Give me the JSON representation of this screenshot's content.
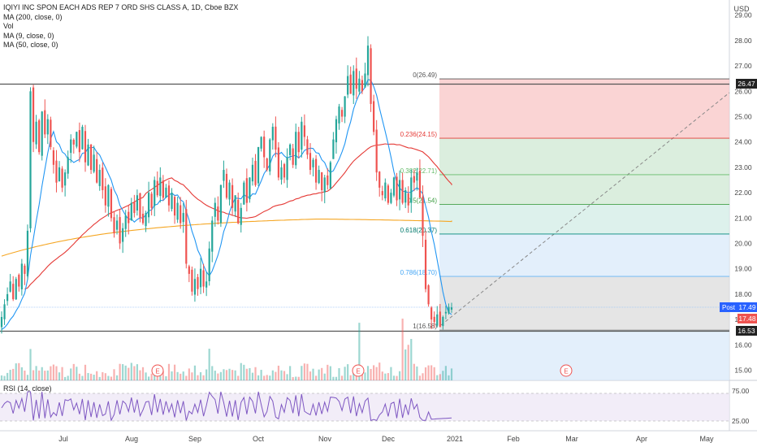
{
  "chart": {
    "title": "IQIYI INC SPON EACH ADS REP 7 ORD SHS CLASS A, 1D, Cboe BZX",
    "indicators": [
      "MA (200, close, 0)",
      "Vol",
      "MA (9, close, 0)",
      "MA (50, close, 0)"
    ],
    "currency": "USD",
    "rsi_label": "RSI (14, close)",
    "x_labels": [
      "Jul",
      "Aug",
      "Sep",
      "Oct",
      "Nov",
      "Dec",
      "2021",
      "Feb",
      "Mar",
      "Apr",
      "May"
    ],
    "price_labels": [
      "29.00",
      "28.00",
      "27.00",
      "26.00",
      "25.00",
      "24.00",
      "23.00",
      "22.00",
      "21.00",
      "20.00",
      "19.00",
      "18.00",
      "17.00",
      "16.00",
      "15.00"
    ],
    "rsi_labels": [
      "75.00",
      "25.00"
    ],
    "fib_labels": [
      "0(26.49)",
      "0.236(24.15)",
      "0.382(22.71)",
      "0.5(21.54)",
      "0.618(20.37)",
      "0.786(18.70)",
      "1(16.58)"
    ],
    "earnings_marker": "E",
    "tags": {
      "resistance": "26.47",
      "post_label": "Post",
      "post_price": "17.49",
      "last_price": "17.48",
      "support": "16.53"
    },
    "colors": {
      "up": "#26a69a",
      "down": "#ef5350",
      "ma9": "#2196f3",
      "ma50": "#e53935",
      "ma200": "#f5a623",
      "rsi": "#7e57c2",
      "accent": "#2962ff"
    }
  },
  "chart_data": {
    "type": "candlestick",
    "symbol": "IQ",
    "interval": "1D",
    "ylim": [
      14.6,
      29.6
    ],
    "resistance_level": 26.47,
    "support_level": 16.53,
    "fib_levels": [
      {
        "ratio": 0,
        "price": 26.49
      },
      {
        "ratio": 0.236,
        "price": 24.15
      },
      {
        "ratio": 0.382,
        "price": 22.71
      },
      {
        "ratio": 0.5,
        "price": 21.54
      },
      {
        "ratio": 0.618,
        "price": 20.37
      },
      {
        "ratio": 0.786,
        "price": 18.7
      },
      {
        "ratio": 1,
        "price": 16.58
      }
    ],
    "closes": [
      17.1,
      17.6,
      18.0,
      18.5,
      17.8,
      18.6,
      18.3,
      19.2,
      18.8,
      20.5,
      26.0,
      24.0,
      24.8,
      23.6,
      25.2,
      24.3,
      24.9,
      23.8,
      23.1,
      22.4,
      23.0,
      22.2,
      22.8,
      23.4,
      24.1,
      23.9,
      24.4,
      23.6,
      24.6,
      23.2,
      23.9,
      22.9,
      23.5,
      22.4,
      22.9,
      22.1,
      21.5,
      22.3,
      21.0,
      20.4,
      20.9,
      20.0,
      20.6,
      21.1,
      20.8,
      21.6,
      21.2,
      21.9,
      21.0,
      20.8,
      21.2,
      22.0,
      21.4,
      22.5,
      21.9,
      22.6,
      21.8,
      22.2,
      21.5,
      22.0,
      21.1,
      21.6,
      20.8,
      21.2,
      19.2,
      18.8,
      18.1,
      18.6,
      18.2,
      19.0,
      18.3,
      18.5,
      19.8,
      20.9,
      21.6,
      20.9,
      22.3,
      22.9,
      21.8,
      22.4,
      21.4,
      21.9,
      20.8,
      21.4,
      22.4,
      21.6,
      22.6,
      23.1,
      22.3,
      23.8,
      24.2,
      23.4,
      22.9,
      24.1,
      24.6,
      23.7,
      22.6,
      23.0,
      22.6,
      23.4,
      23.9,
      23.1,
      24.4,
      23.6,
      24.8,
      24.2,
      23.5,
      22.9,
      23.3,
      22.4,
      22.9,
      22.1,
      22.6,
      22.3,
      23.2,
      24.1,
      24.9,
      25.4,
      25.0,
      25.8,
      26.6,
      25.9,
      26.8,
      26.1,
      26.5,
      26.0,
      26.7,
      27.8,
      25.5,
      24.4,
      22.8,
      22.2,
      21.9,
      22.4,
      21.6,
      22.0,
      22.6,
      21.7,
      22.5,
      21.6,
      22.1,
      21.5,
      22.6,
      22.4,
      22.8,
      21.8,
      20.3,
      18.2,
      17.6,
      17.0,
      16.9,
      17.2,
      16.7,
      17.1,
      17.3,
      17.5,
      17.48
    ],
    "volume_note": "relative volume bars shown beneath price",
    "rsi_bands": [
      25,
      75
    ]
  }
}
